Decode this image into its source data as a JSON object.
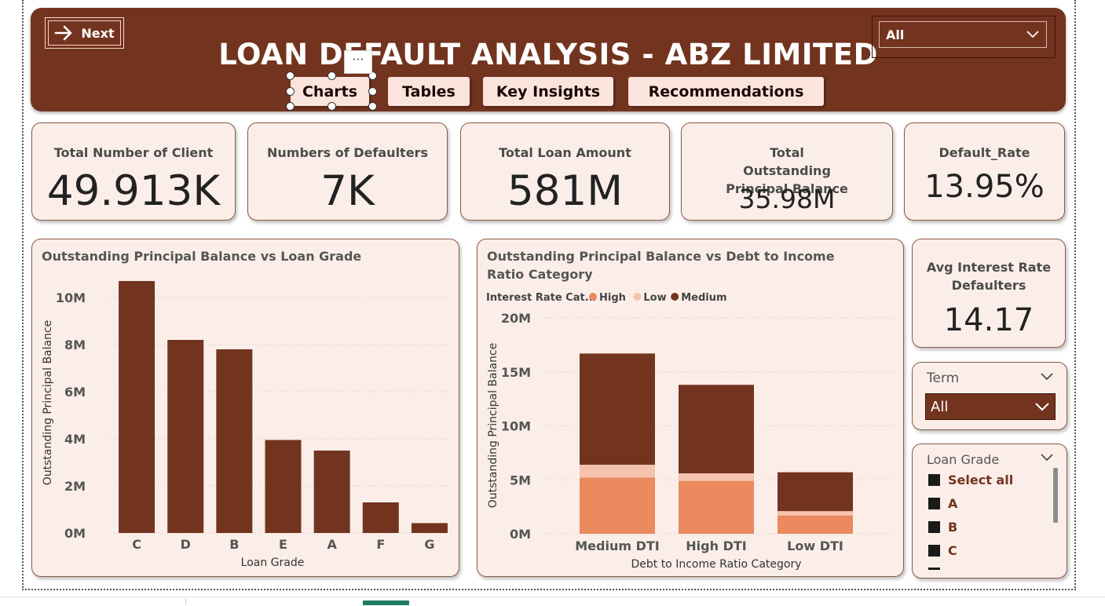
{
  "header": {
    "title": "LOAN DEFAULT ANALYSIS - ABZ LIMITED",
    "next_label": "Next",
    "dropdown_value": "All",
    "nav": [
      "Charts",
      "Tables",
      "Key Insights",
      "Recommendations"
    ],
    "more_label": "···"
  },
  "kpis": [
    {
      "label": "Total Number of Client",
      "value": "49.913K"
    },
    {
      "label": "Numbers of Defaulters",
      "value": "7K"
    },
    {
      "label": "Total Loan Amount",
      "value": "581M"
    },
    {
      "label": "Total Outstanding Principal Balance",
      "value": "35.98M"
    },
    {
      "label": "Default_Rate",
      "value": "13.95%"
    }
  ],
  "avg_interest": {
    "label": "Avg Interest Rate Defaulters",
    "value": "14.17"
  },
  "term_slicer": {
    "title": "Term",
    "value": "All"
  },
  "grade_slicer": {
    "title": "Loan Grade",
    "items": [
      "Select all",
      "A",
      "B",
      "C"
    ]
  },
  "colors": {
    "brand": "#73341f",
    "card_bg": "#fbeee9",
    "high": "#ea8a5e",
    "low": "#f4c2ad",
    "medium": "#73341f"
  },
  "chart_data": [
    {
      "type": "bar",
      "title": "Outstanding Principal Balance vs Loan Grade",
      "xlabel": "Loan Grade",
      "ylabel": "Outstanding Principal Balance",
      "categories": [
        "C",
        "D",
        "B",
        "E",
        "A",
        "F",
        "G"
      ],
      "values": [
        10700000,
        8200000,
        7800000,
        3950000,
        3500000,
        1300000,
        420000
      ],
      "ylim": [
        0,
        11000000
      ],
      "yticks": [
        "0M",
        "2M",
        "4M",
        "6M",
        "8M",
        "10M"
      ],
      "ytick_values": [
        0,
        2000000,
        4000000,
        6000000,
        8000000,
        10000000
      ],
      "grid": true
    },
    {
      "type": "bar",
      "stacked": true,
      "title": "Outstanding Principal Balance vs Debt to Income Ratio Category",
      "xlabel": "Debt to Income Ratio Category",
      "ylabel": "Outstanding Principal Balance",
      "legend_title": "Interest Rate Cat...",
      "legend_position": "top-left",
      "categories": [
        "Medium DTI",
        "High DTI",
        "Low DTI"
      ],
      "series": [
        {
          "name": "High",
          "values": [
            5200000,
            4900000,
            1700000
          ]
        },
        {
          "name": "Low",
          "values": [
            1200000,
            700000,
            400000
          ]
        },
        {
          "name": "Medium",
          "values": [
            10300000,
            8200000,
            3600000
          ]
        }
      ],
      "ylim": [
        0,
        20000000
      ],
      "yticks": [
        "0M",
        "5M",
        "10M",
        "15M",
        "20M"
      ],
      "ytick_values": [
        0,
        5000000,
        10000000,
        15000000,
        20000000
      ],
      "grid": true
    }
  ]
}
